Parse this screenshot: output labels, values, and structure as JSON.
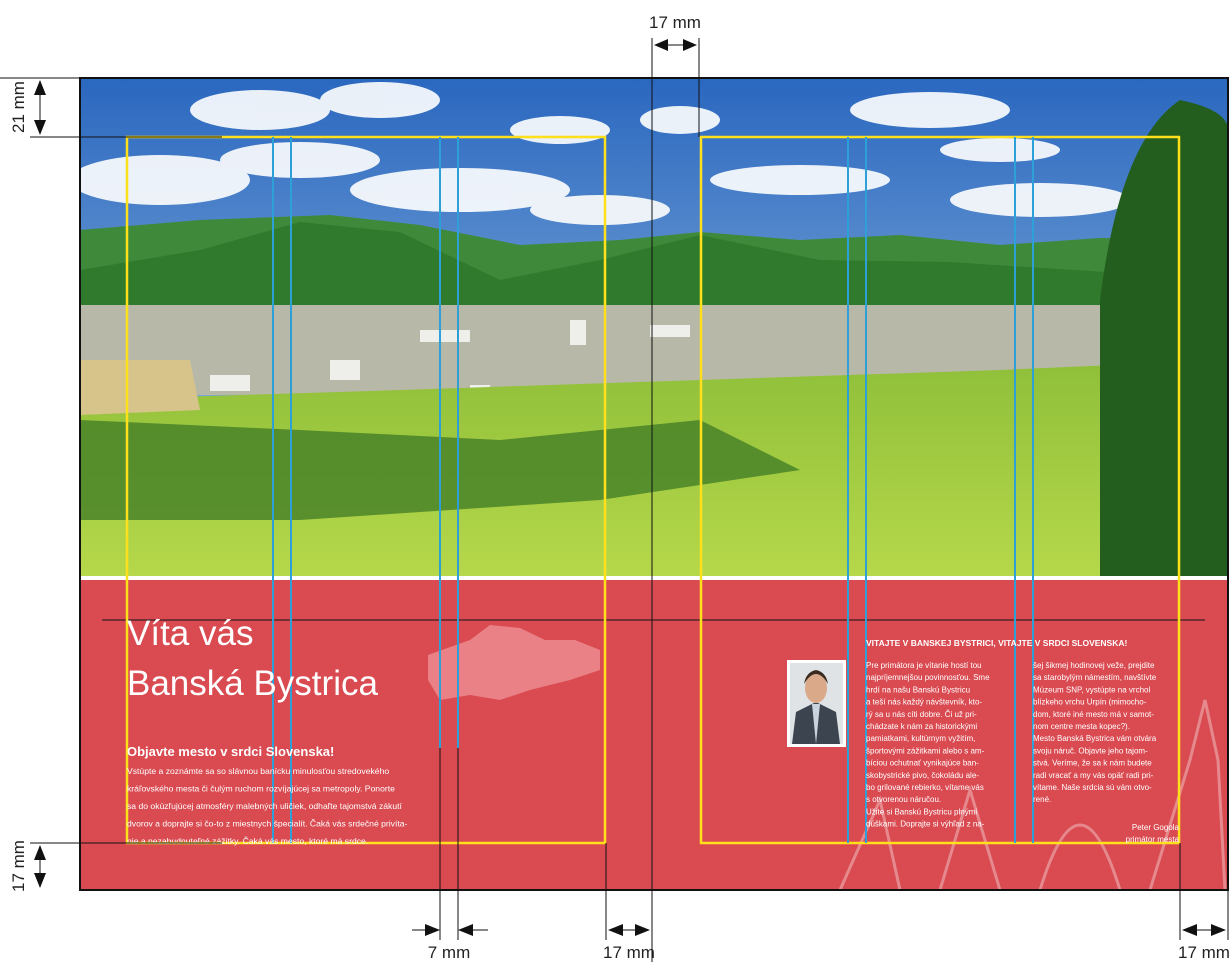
{
  "dimensions": {
    "top_fold": "17 mm",
    "top_bleed": "21 mm",
    "bottom_bleed": "17 mm",
    "column_gap": "7 mm",
    "fold_margin": "17 mm",
    "right_bleed": "17 mm"
  },
  "cover": {
    "title_lines": [
      "Víta vás",
      "Banská Bystrica"
    ],
    "subtitle": "Objavte mesto v srdci Slovenska!",
    "body_lines": [
      "Vstúpte a zoznámte sa so slávnou banícku minulosťou stredovekého",
      "kráľovského mesta či čulým ruchom rozvíjajúcej sa metropoly. Ponorte",
      "sa do okúzľujúcej atmosféry malebných uličiek, odhaľte tajomstvá zákutí",
      "dvorov a doprajte si čo-to z miestnych špecialít. Čaká vás srdečné privíta-",
      "nie a nezabudnuteľné zážitky. Čaká vás mesto, ktoré má srdce."
    ]
  },
  "welcome": {
    "heading": "VITAJTE V BANSKEJ BYSTRICI, VITAJTE V SRDCI SLOVENSKA!",
    "column1": [
      "Pre primátora je vítanie hostí tou",
      "najpríjemnejšou povinnosťou. Sme",
      "hrdí na našu Banskú Bystricu",
      "a teší nás každý návštevník, kto-",
      "rý sa u nás cíti dobre. Či už pri-",
      "chádzate k nám za historickými",
      "pamiatkami, kultúrnym vyžitím,",
      "športovými zážitkami alebo s am-",
      "bíciou ochutnať vynikajúce ban-",
      "skobystrické pivo, čokoládu ale-",
      "bo grilované rebierko, vítame vás",
      "s otvorenou náručou.",
      "Užite si Banskú Bystricu plnými",
      "dúškami. Doprajte si výhľad z na-"
    ],
    "column2": [
      "šej šikmej hodinovej veže, prejdite",
      "sa starobylým námestím, navštívte",
      "Múzeum SNP, vystúpte na vrchol",
      "blízkeho vrchu Urpín (mimocho-",
      "dom, ktoré iné mesto má v samot-",
      "nom centre mesta kopec?).",
      "Mesto Banská Bystrica vám otvára",
      "svoju náruč. Objavte jeho tajom-",
      "stvá. Veríme, že sa k nám budete",
      "radi vracať a my vás opäť radi pri-",
      "vítame. Naše srdcia sú vám otvo-",
      "rené."
    ],
    "signature": [
      "Peter Gogola",
      "primátor mesta"
    ]
  }
}
